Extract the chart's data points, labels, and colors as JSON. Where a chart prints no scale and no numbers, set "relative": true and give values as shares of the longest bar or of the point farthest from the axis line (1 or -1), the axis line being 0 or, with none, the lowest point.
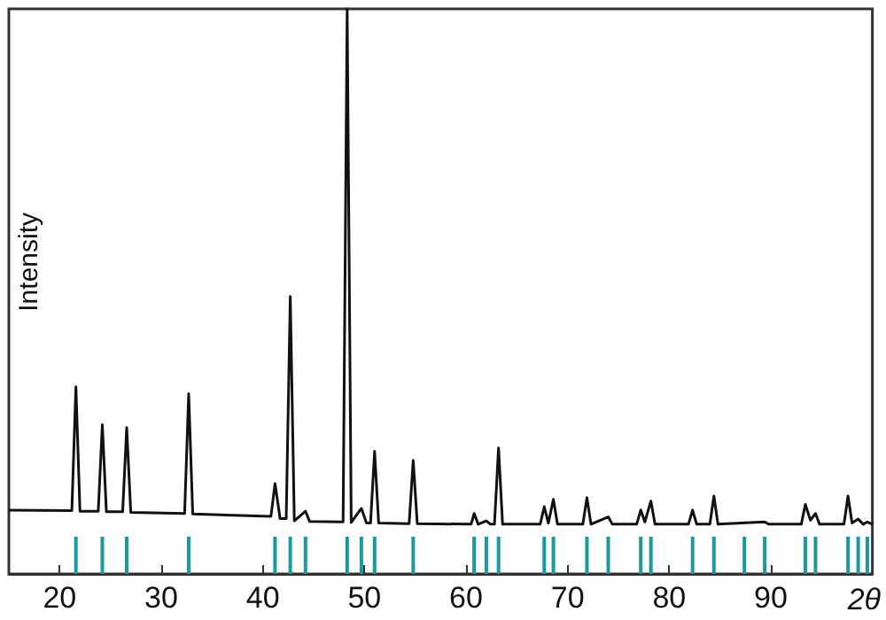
{
  "chart_data": {
    "type": "line",
    "xlabel": "2θ",
    "ylabel": "Intensity",
    "relative": true,
    "marker": "none",
    "xlim": [
      15,
      100
    ],
    "xticks": [
      20,
      30,
      40,
      50,
      60,
      70,
      80,
      90
    ],
    "series": [
      {
        "color": "#111111",
        "x": [
          15,
          21.2,
          21.6,
          22.0,
          23.8,
          24.2,
          24.6,
          26.2,
          26.6,
          27.0,
          32.3,
          32.7,
          33.1,
          40.8,
          41.2,
          41.7,
          42.3,
          42.7,
          43.1,
          44.2,
          44.6,
          47.9,
          48.3,
          48.7,
          49.7,
          50.2,
          50.6,
          51.0,
          51.4,
          54.4,
          54.8,
          55.2,
          60.5,
          60.8,
          61.2,
          62.0,
          62.4,
          62.8,
          63.2,
          63.6,
          67.3,
          67.7,
          68.1,
          68.6,
          69.0,
          71.5,
          71.9,
          72.3,
          74.0,
          74.4,
          76.8,
          77.2,
          77.6,
          78.2,
          78.6,
          81.9,
          82.3,
          82.7,
          84.0,
          84.4,
          84.8,
          89.4,
          89.8,
          93.0,
          93.4,
          93.9,
          94.4,
          94.8,
          97.2,
          97.6,
          98.0,
          98.6,
          99.1,
          99.5,
          100
        ],
        "values": [
          0.113,
          0.112,
          0.331,
          0.111,
          0.111,
          0.264,
          0.11,
          0.11,
          0.259,
          0.109,
          0.107,
          0.319,
          0.106,
          0.102,
          0.16,
          0.098,
          0.098,
          0.491,
          0.094,
          0.111,
          0.093,
          0.092,
          1,
          0.091,
          0.116,
          0.09,
          0.09,
          0.217,
          0.09,
          0.089,
          0.201,
          0.089,
          0.088,
          0.107,
          0.088,
          0.094,
          0.088,
          0.088,
          0.223,
          0.088,
          0.088,
          0.119,
          0.09,
          0.132,
          0.088,
          0.088,
          0.135,
          0.088,
          0.101,
          0.088,
          0.088,
          0.113,
          0.092,
          0.129,
          0.088,
          0.088,
          0.113,
          0.088,
          0.088,
          0.138,
          0.088,
          0.092,
          0.088,
          0.088,
          0.123,
          0.095,
          0.107,
          0.088,
          0.088,
          0.138,
          0.09,
          0.097,
          0.088,
          0.092,
          0.088
        ]
      },
      {
        "type": "bar",
        "color": "#1a9a9a",
        "x": [
          21.6,
          24.2,
          26.6,
          32.7,
          41.2,
          42.7,
          44.2,
          48.3,
          49.7,
          51.0,
          54.8,
          60.8,
          62.0,
          63.2,
          67.7,
          68.6,
          71.9,
          74.0,
          77.2,
          78.2,
          82.3,
          84.4,
          87.4,
          89.4,
          93.4,
          94.4,
          97.6,
          98.6,
          99.5
        ],
        "values": [
          0.066,
          0.066,
          0.066,
          0.066,
          0.066,
          0.066,
          0.066,
          0.066,
          0.066,
          0.066,
          0.066,
          0.066,
          0.066,
          0.066,
          0.066,
          0.066,
          0.066,
          0.066,
          0.066,
          0.066,
          0.066,
          0.066,
          0.066,
          0.066,
          0.066,
          0.066,
          0.066,
          0.066,
          0.066
        ]
      }
    ]
  }
}
